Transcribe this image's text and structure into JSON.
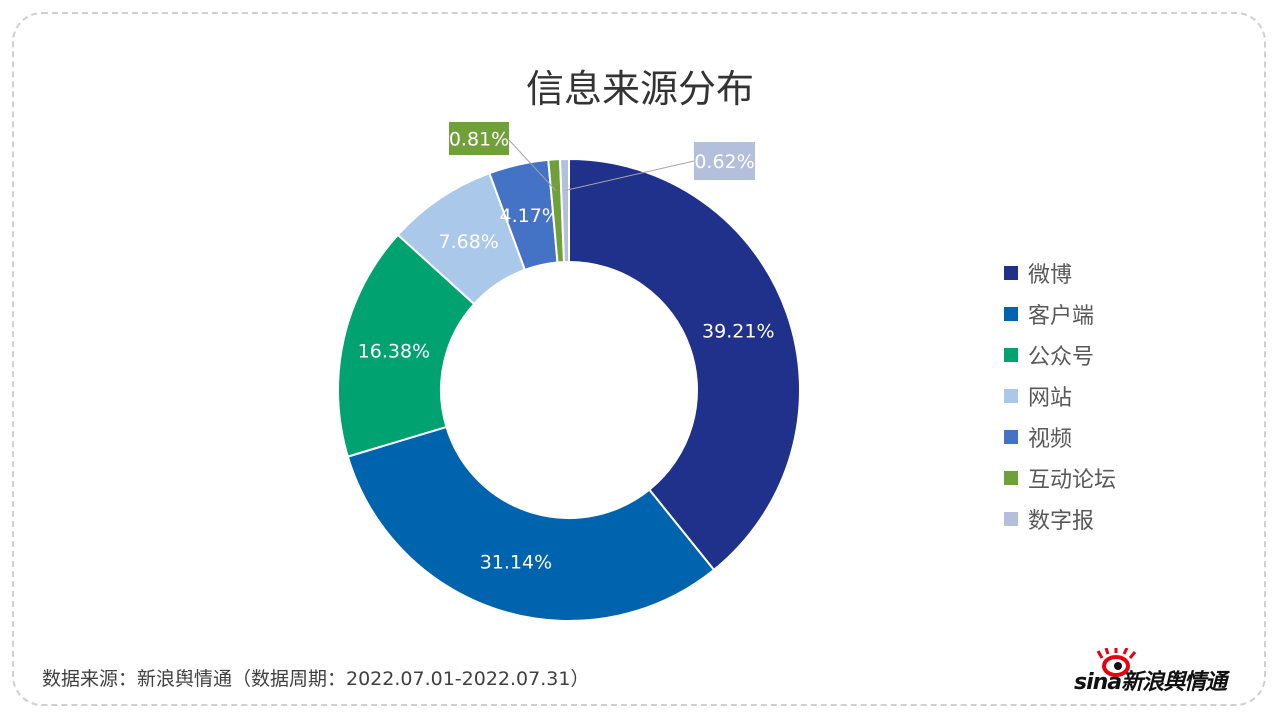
{
  "chart_data": {
    "type": "pie",
    "donut": true,
    "title": "信息来源分布",
    "categories": [
      "微博",
      "客户端",
      "公众号",
      "网站",
      "视频",
      "互动论坛",
      "数字报"
    ],
    "values": [
      39.21,
      31.14,
      16.38,
      7.68,
      4.17,
      0.81,
      0.62
    ],
    "labels": [
      "39.21%",
      "31.14%",
      "16.38%",
      "7.68%",
      "4.17%",
      "0.81%",
      "0.62%"
    ],
    "colors": [
      "#1f318a",
      "#0063ad",
      "#00a370",
      "#a9c8ea",
      "#4472c4",
      "#70a03a",
      "#b4bfdc"
    ],
    "legend_position": "right"
  },
  "footer": "数据来源：新浪舆情通（数据周期：2022.07.01-2022.07.31）",
  "logo": {
    "text": "sina新浪舆情通",
    "colors": {
      "eye": "#e60012",
      "text": "#111111"
    }
  }
}
